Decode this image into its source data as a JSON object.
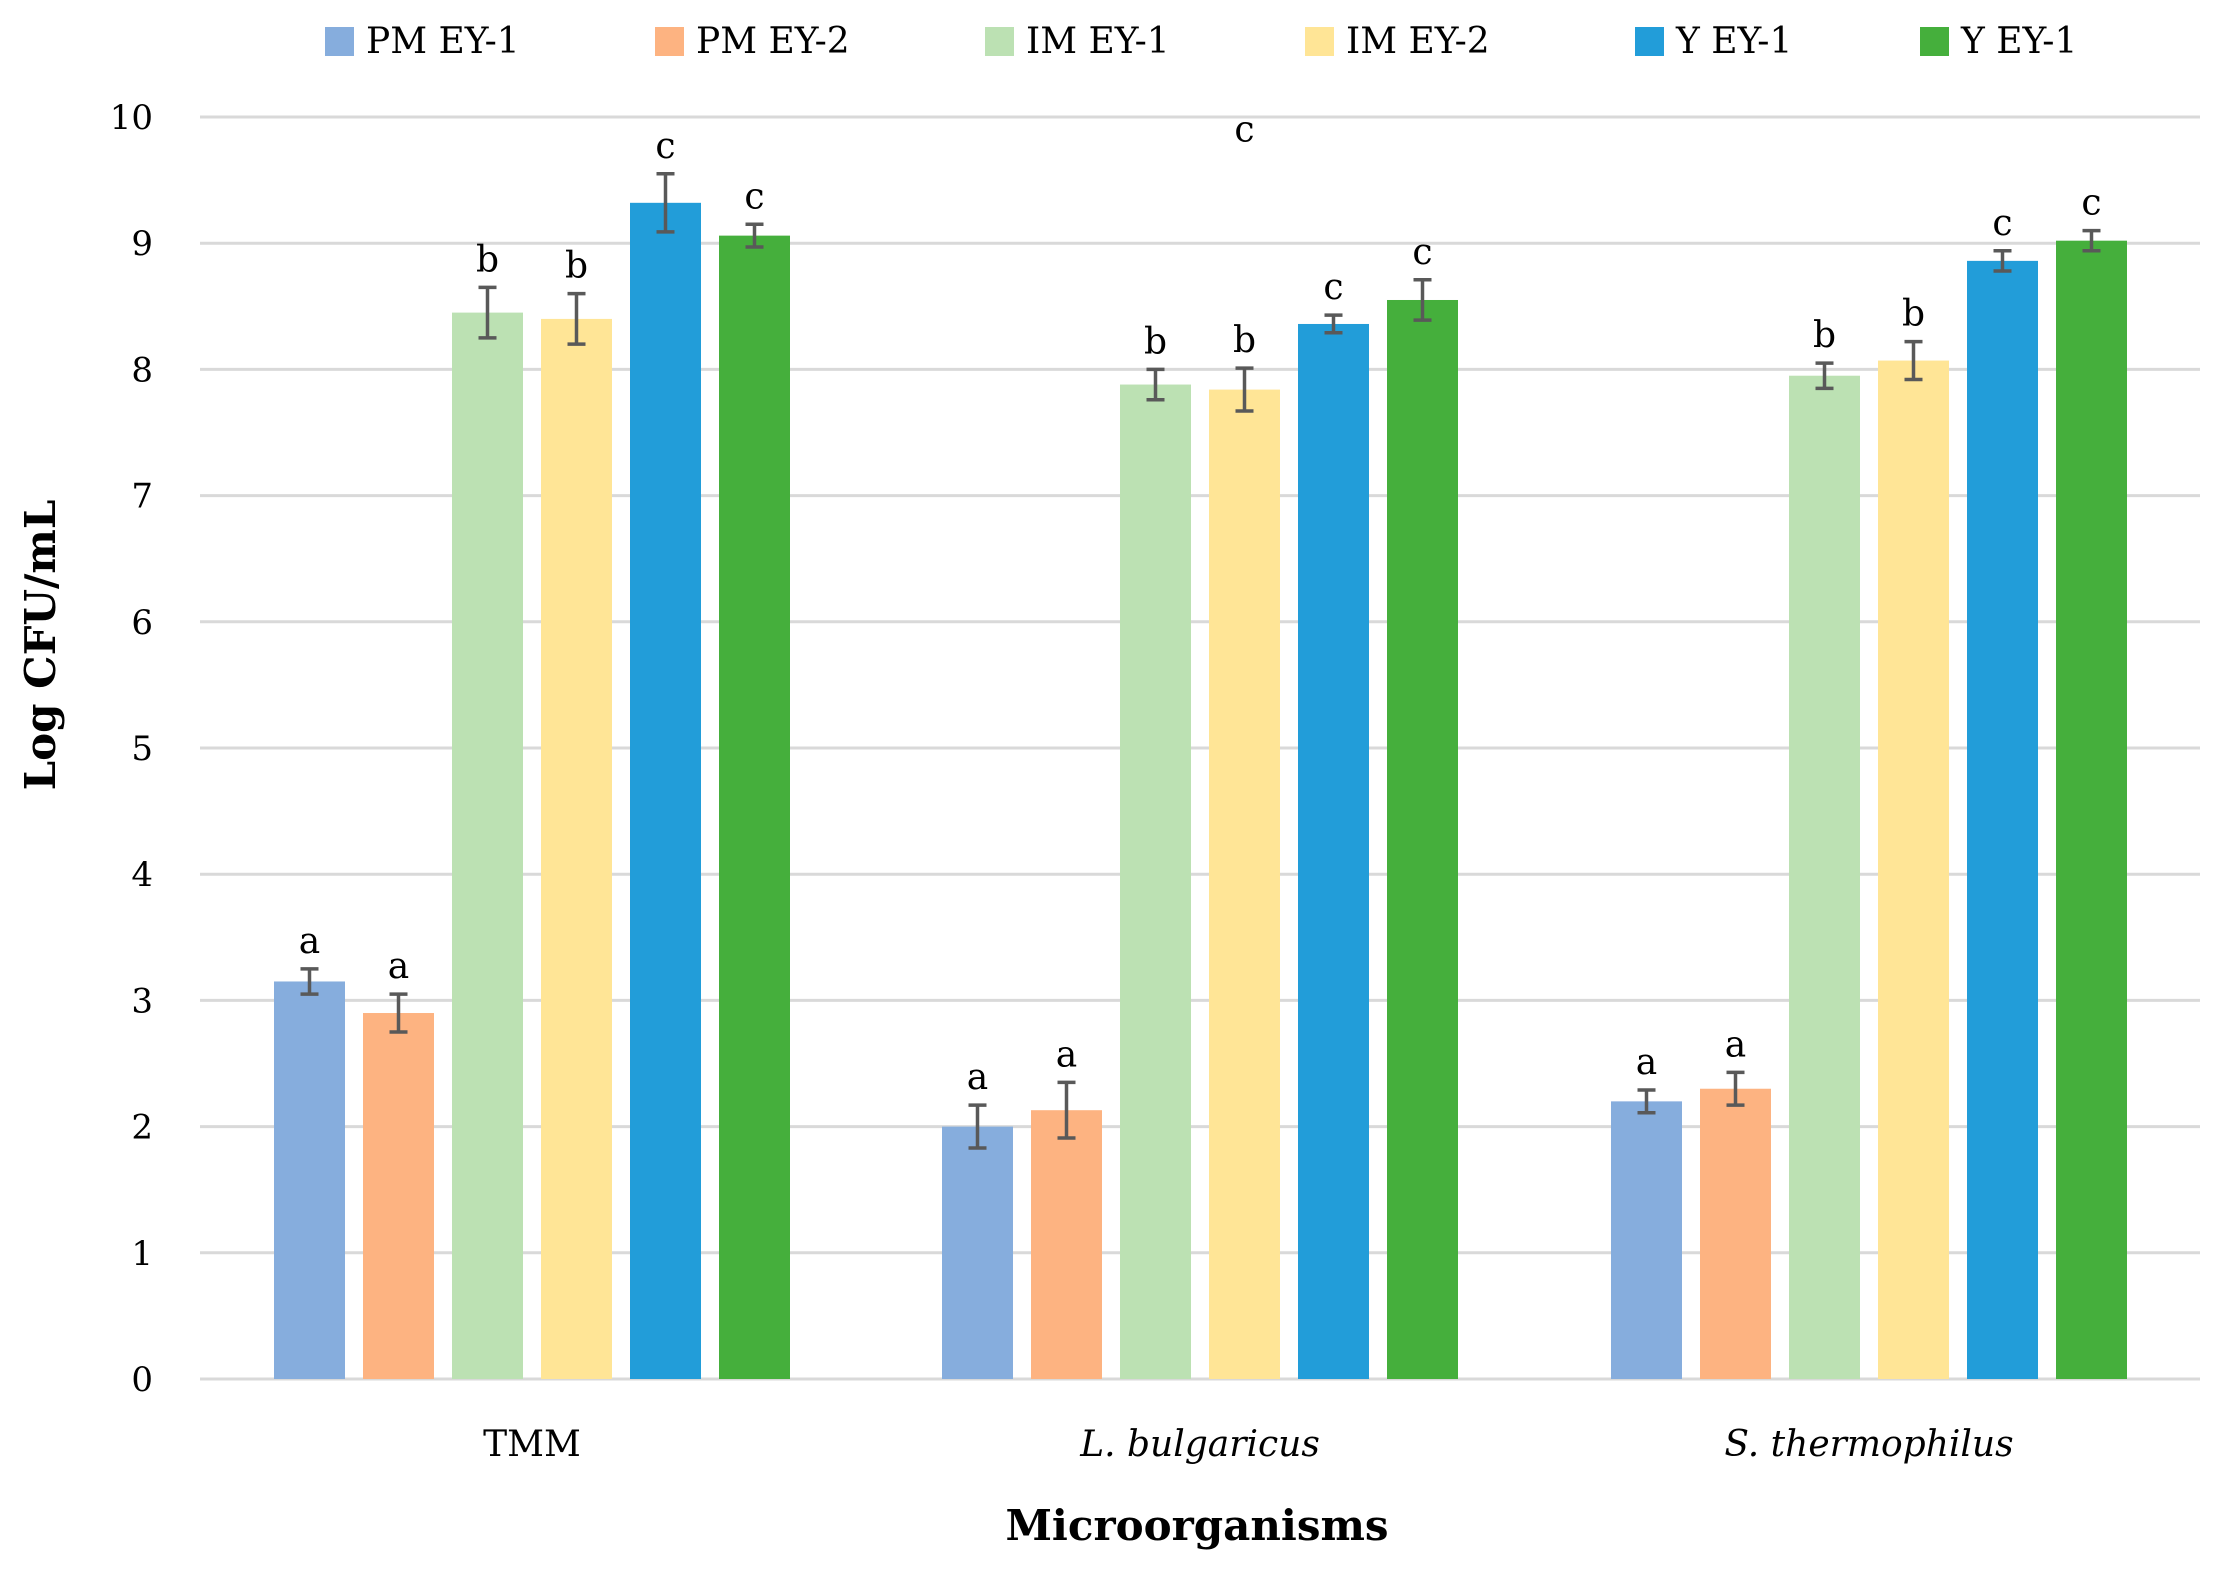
{
  "chart_data": {
    "type": "bar",
    "title": "",
    "xlabel": "Microorganisms",
    "ylabel": "Log CFU/mL",
    "ylim": [
      0,
      10
    ],
    "yticks": [
      0,
      1,
      2,
      3,
      4,
      5,
      6,
      7,
      8,
      9,
      10
    ],
    "grid": true,
    "legend_position": "top",
    "categories": [
      "TMM",
      "L. bulgaricus",
      "S. thermophilus"
    ],
    "categories_italic": [
      false,
      true,
      true
    ],
    "series": [
      {
        "name": "PM EY-1",
        "color": "#86ADDD",
        "values": [
          3.15,
          2.0,
          2.2
        ],
        "errors": [
          0.1,
          0.17,
          0.09
        ],
        "labels": [
          "a",
          "a",
          "a"
        ]
      },
      {
        "name": "PM EY-2",
        "color": "#FDB381",
        "values": [
          2.9,
          2.13,
          2.3
        ],
        "errors": [
          0.15,
          0.22,
          0.13
        ],
        "labels": [
          "a",
          "a",
          "a"
        ]
      },
      {
        "name": "IM EY-1",
        "color": "#BCE1B3",
        "values": [
          8.45,
          7.88,
          7.95
        ],
        "errors": [
          0.2,
          0.12,
          0.1
        ],
        "labels": [
          "b",
          "b",
          "b"
        ]
      },
      {
        "name": "IM EY-2",
        "color": "#FFE596",
        "values": [
          8.4,
          7.84,
          8.07
        ],
        "errors": [
          0.2,
          0.17,
          0.15
        ],
        "labels": [
          "b",
          "b",
          "b"
        ]
      },
      {
        "name": "Y EY-1",
        "color": "#229DD9",
        "values": [
          9.32,
          8.36,
          8.86
        ],
        "errors": [
          0.23,
          0.07,
          0.08
        ],
        "labels": [
          "c",
          "c",
          "c"
        ]
      },
      {
        "name": "Y EY-1",
        "color": "#45AF3C",
        "values": [
          9.06,
          8.55,
          9.02
        ],
        "errors": [
          0.09,
          0.16,
          0.08
        ],
        "labels": [
          "c",
          "c",
          "c"
        ]
      }
    ],
    "annotations": [
      {
        "text": "c",
        "category": "L. bulgaricus",
        "y": 9.9
      }
    ]
  }
}
